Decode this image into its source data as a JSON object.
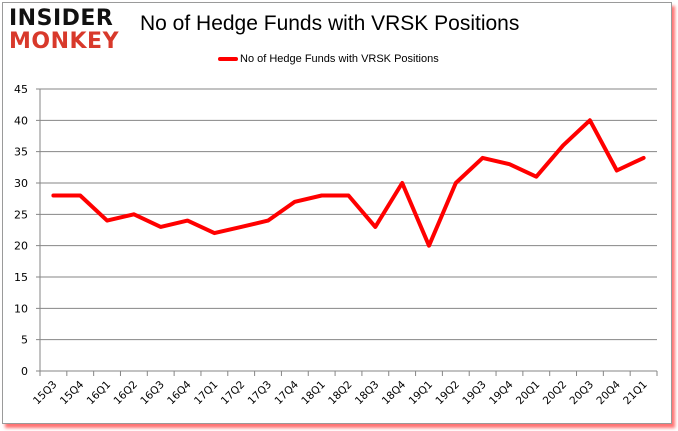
{
  "logo": {
    "line1": "INSIDER",
    "line2": "MONKEY"
  },
  "header": {
    "title": "No of Hedge Funds with VRSK Positions"
  },
  "legend": {
    "label": "No of Hedge Funds with VRSK Positions",
    "color": "#ff0000"
  },
  "colors": {
    "line": "#ff0000",
    "grid": "#868686",
    "logo_dark": "#111111",
    "logo_red": "#d8392b"
  },
  "chart_data": {
    "type": "line",
    "title": "No of Hedge Funds with VRSK Positions",
    "xlabel": "",
    "ylabel": "",
    "ylim": [
      0,
      45
    ],
    "yticks": [
      0,
      5,
      10,
      15,
      20,
      25,
      30,
      35,
      40,
      45
    ],
    "grid": true,
    "legend_position": "top",
    "categories": [
      "15Q3",
      "15Q4",
      "16Q1",
      "16Q2",
      "16Q3",
      "16Q4",
      "17Q1",
      "17Q2",
      "17Q3",
      "17Q4",
      "18Q1",
      "18Q2",
      "18Q3",
      "18Q4",
      "19Q1",
      "19Q2",
      "19Q3",
      "19Q4",
      "20Q1",
      "20Q2",
      "20Q3",
      "20Q4",
      "21Q1"
    ],
    "series": [
      {
        "name": "No of Hedge Funds with VRSK Positions",
        "color": "#ff0000",
        "values": [
          28,
          28,
          24,
          25,
          23,
          24,
          22,
          23,
          24,
          27,
          28,
          28,
          23,
          30,
          20,
          30,
          34,
          33,
          31,
          36,
          40,
          32,
          34
        ]
      }
    ]
  }
}
